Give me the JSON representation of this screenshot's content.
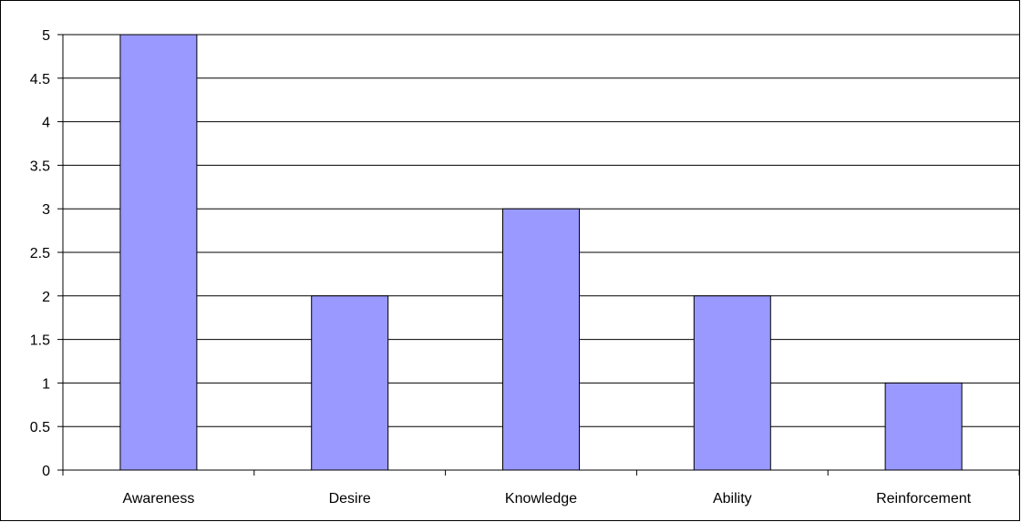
{
  "chart_data": {
    "type": "bar",
    "title": "",
    "xlabel": "",
    "ylabel": "",
    "categories": [
      "Awareness",
      "Desire",
      "Knowledge",
      "Ability",
      "Reinforcement"
    ],
    "values": [
      5,
      2,
      3,
      2,
      1
    ],
    "ylim": [
      0,
      5
    ],
    "yticks": [
      "0",
      "0.5",
      "1",
      "1.5",
      "2",
      "2.5",
      "3",
      "3.5",
      "4",
      "4.5",
      "5"
    ],
    "grid": "horizontal",
    "legend": "none",
    "bar_color": "#9999ff",
    "bar_border_color": "#000000"
  }
}
